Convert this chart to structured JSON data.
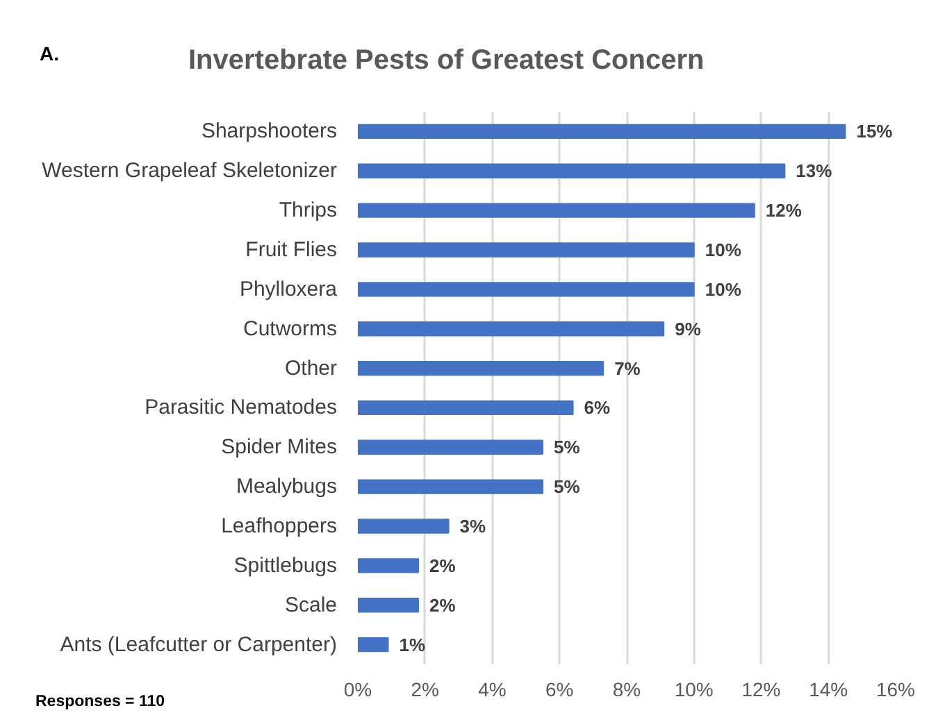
{
  "chart_data": {
    "type": "bar",
    "orientation": "horizontal",
    "title": "Invertebrate Pests of Greatest Concern",
    "categories": [
      "Sharpshooters",
      "Western Grapeleaf Skeletonizer",
      "Thrips",
      "Fruit Flies",
      "Phylloxera",
      "Cutworms",
      "Other",
      "Parasitic Nematodes",
      "Spider Mites",
      "Mealybugs",
      "Leafhoppers",
      "Spittlebugs",
      "Scale",
      "Ants (Leafcutter or Carpenter)"
    ],
    "values": [
      14.5,
      12.7,
      11.8,
      10.0,
      10.0,
      9.1,
      7.3,
      6.4,
      5.5,
      5.5,
      2.7,
      1.8,
      1.8,
      0.9
    ],
    "value_labels": [
      "15%",
      "13%",
      "12%",
      "10%",
      "10%",
      "9%",
      "7%",
      "6%",
      "5%",
      "5%",
      "3%",
      "2%",
      "2%",
      "1%"
    ],
    "color": "#4472c4",
    "xlim": [
      0,
      16
    ],
    "xticks": [
      {
        "value": 0,
        "label": "0%"
      },
      {
        "value": 2,
        "label": "2%"
      },
      {
        "value": 4,
        "label": "4%"
      },
      {
        "value": 6,
        "label": "6%"
      },
      {
        "value": 8,
        "label": "8%"
      },
      {
        "value": 10,
        "label": "10%"
      },
      {
        "value": 12,
        "label": "12%"
      },
      {
        "value": 14,
        "label": "14%"
      },
      {
        "value": 16,
        "label": "16%"
      }
    ],
    "grid": "x",
    "annotations": [
      "A.",
      "Responses = 110"
    ]
  }
}
